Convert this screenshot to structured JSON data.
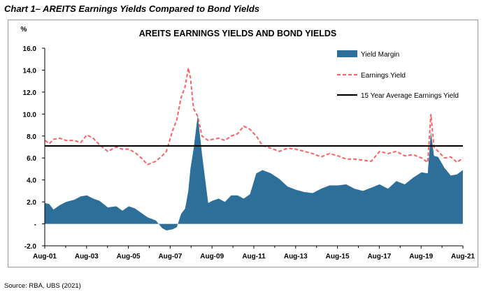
{
  "heading": "Chart 1– AREITS Earnings Yields Compared to Bond Yields",
  "source": "Source: RBA, UBS (2021)",
  "chart_data": {
    "type": "area",
    "title": "AREITS EARNINGS YIELDS AND BOND YIELDS",
    "ylabel": "%",
    "xlabel": "",
    "ylim": [
      -2,
      16
    ],
    "y_ticks": [
      16,
      14,
      12,
      10,
      8,
      6,
      4,
      2,
      0,
      -2
    ],
    "y_tick_labels": [
      "16.0",
      "14.0",
      "12.0",
      "10.0",
      "8.0",
      "6.0",
      "4.0",
      "2.0",
      "-",
      "-2.0"
    ],
    "x_tick_labels": [
      "Aug-01",
      "Aug-03",
      "Aug-05",
      "Aug-07",
      "Aug-09",
      "Aug-11",
      "Aug-13",
      "Aug-15",
      "Aug-17",
      "Aug-19",
      "Aug-21"
    ],
    "xlim_years": [
      2001.583,
      2021.583
    ],
    "grid": false,
    "legend_position": "top-right",
    "colors": {
      "margin": "#2e6f99",
      "earnings": "#ff5f5f",
      "average": "#000000"
    },
    "series": [
      {
        "name": "Yield Margin",
        "type": "area",
        "x": [
          2001.6,
          2001.8,
          2002.0,
          2002.3,
          2002.6,
          2003.0,
          2003.3,
          2003.6,
          2003.9,
          2004.2,
          2004.6,
          2005.0,
          2005.3,
          2005.6,
          2005.9,
          2006.2,
          2006.5,
          2006.9,
          2007.2,
          2007.4,
          2007.7,
          2007.9,
          2008.1,
          2008.3,
          2008.45,
          2008.55,
          2008.7,
          2008.9,
          2009.1,
          2009.4,
          2009.6,
          2009.9,
          2010.2,
          2010.5,
          2010.8,
          2011.1,
          2011.4,
          2011.7,
          2012.0,
          2012.4,
          2012.8,
          2013.2,
          2013.6,
          2014.0,
          2014.4,
          2014.8,
          2015.2,
          2015.6,
          2016.0,
          2016.4,
          2016.8,
          2017.2,
          2017.6,
          2018.0,
          2018.4,
          2018.8,
          2019.2,
          2019.6,
          2019.9,
          2020.05,
          2020.2,
          2020.4,
          2020.7,
          2021.0,
          2021.3,
          2021.58
        ],
        "values": [
          1.9,
          1.8,
          1.3,
          1.7,
          2.0,
          2.2,
          2.5,
          2.6,
          2.3,
          2.1,
          1.5,
          1.6,
          1.2,
          1.6,
          1.4,
          1.0,
          0.6,
          0.3,
          -0.4,
          -0.6,
          -0.5,
          -0.3,
          0.9,
          1.4,
          3.0,
          5.0,
          6.8,
          9.9,
          6.4,
          1.9,
          2.1,
          2.3,
          2.0,
          2.6,
          2.6,
          2.3,
          2.7,
          4.6,
          4.9,
          4.6,
          4.1,
          3.4,
          3.1,
          2.9,
          2.8,
          3.2,
          3.5,
          3.5,
          3.6,
          3.2,
          3.0,
          3.3,
          3.6,
          3.2,
          3.9,
          3.6,
          4.2,
          4.7,
          4.6,
          8.4,
          6.2,
          6.1,
          5.1,
          4.4,
          4.5,
          4.9
        ]
      },
      {
        "name": "Earnings Yield",
        "type": "line",
        "x": [
          2001.6,
          2001.8,
          2002.0,
          2002.3,
          2002.6,
          2003.0,
          2003.3,
          2003.6,
          2003.9,
          2004.2,
          2004.6,
          2005.0,
          2005.3,
          2005.6,
          2005.9,
          2006.2,
          2006.5,
          2006.9,
          2007.2,
          2007.4,
          2007.7,
          2007.9,
          2008.1,
          2008.3,
          2008.45,
          2008.55,
          2008.7,
          2008.9,
          2009.1,
          2009.4,
          2009.6,
          2009.9,
          2010.2,
          2010.5,
          2010.8,
          2011.1,
          2011.4,
          2011.7,
          2012.0,
          2012.4,
          2012.8,
          2013.2,
          2013.6,
          2014.0,
          2014.4,
          2014.8,
          2015.2,
          2015.6,
          2016.0,
          2016.4,
          2016.8,
          2017.2,
          2017.6,
          2018.0,
          2018.4,
          2018.8,
          2019.2,
          2019.6,
          2019.9,
          2020.05,
          2020.2,
          2020.4,
          2020.7,
          2021.0,
          2021.3,
          2021.58
        ],
        "values": [
          7.6,
          7.3,
          7.7,
          7.8,
          7.6,
          7.6,
          7.4,
          8.1,
          7.8,
          7.2,
          6.6,
          7.0,
          6.8,
          6.8,
          6.5,
          6.0,
          5.4,
          5.7,
          6.2,
          6.6,
          8.5,
          9.5,
          11.5,
          12.5,
          14.2,
          13.3,
          10.5,
          9.8,
          8.0,
          7.6,
          7.7,
          7.8,
          7.6,
          8.0,
          8.2,
          8.9,
          8.6,
          8.0,
          7.1,
          6.9,
          6.6,
          6.9,
          6.8,
          6.6,
          6.4,
          6.1,
          6.4,
          6.2,
          5.9,
          5.9,
          5.8,
          5.7,
          6.6,
          6.4,
          6.6,
          6.2,
          6.3,
          6.0,
          5.6,
          10.0,
          7.0,
          6.6,
          6.0,
          6.1,
          5.6,
          6.0
        ]
      },
      {
        "name": "15 Year Average Earnings Yield",
        "type": "line",
        "x": [
          2001.583,
          2021.583
        ],
        "values": [
          7.1,
          7.1
        ]
      }
    ]
  }
}
